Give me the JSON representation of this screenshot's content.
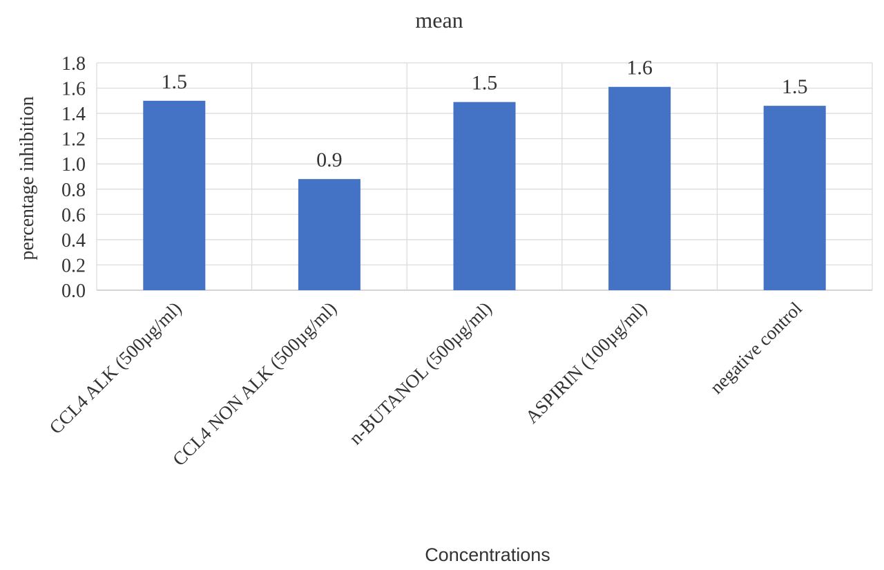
{
  "chart_data": {
    "type": "bar",
    "title": "mean",
    "xlabel": "Concentrations",
    "ylabel": "percentage inhibition",
    "categories": [
      "CCL4 ALK (500µg/ml)",
      "CCL4 NON ALK (500µg/ml)",
      "n-BUTANOL (500µg/ml)",
      "ASPIRIN (100µg/ml)",
      "negative control"
    ],
    "values": [
      1.5,
      0.88,
      1.49,
      1.61,
      1.46
    ],
    "data_labels": [
      "1.5",
      "0.9",
      "1.5",
      "1.6",
      "1.5"
    ],
    "ylim": [
      0,
      1.8
    ],
    "yticks": [
      "0.0",
      "0.2",
      "0.4",
      "0.6",
      "0.8",
      "1.0",
      "1.2",
      "1.4",
      "1.6",
      "1.8"
    ],
    "grid": "horizontal and vertical",
    "bar_color": "#4472c4",
    "legend": "none"
  }
}
